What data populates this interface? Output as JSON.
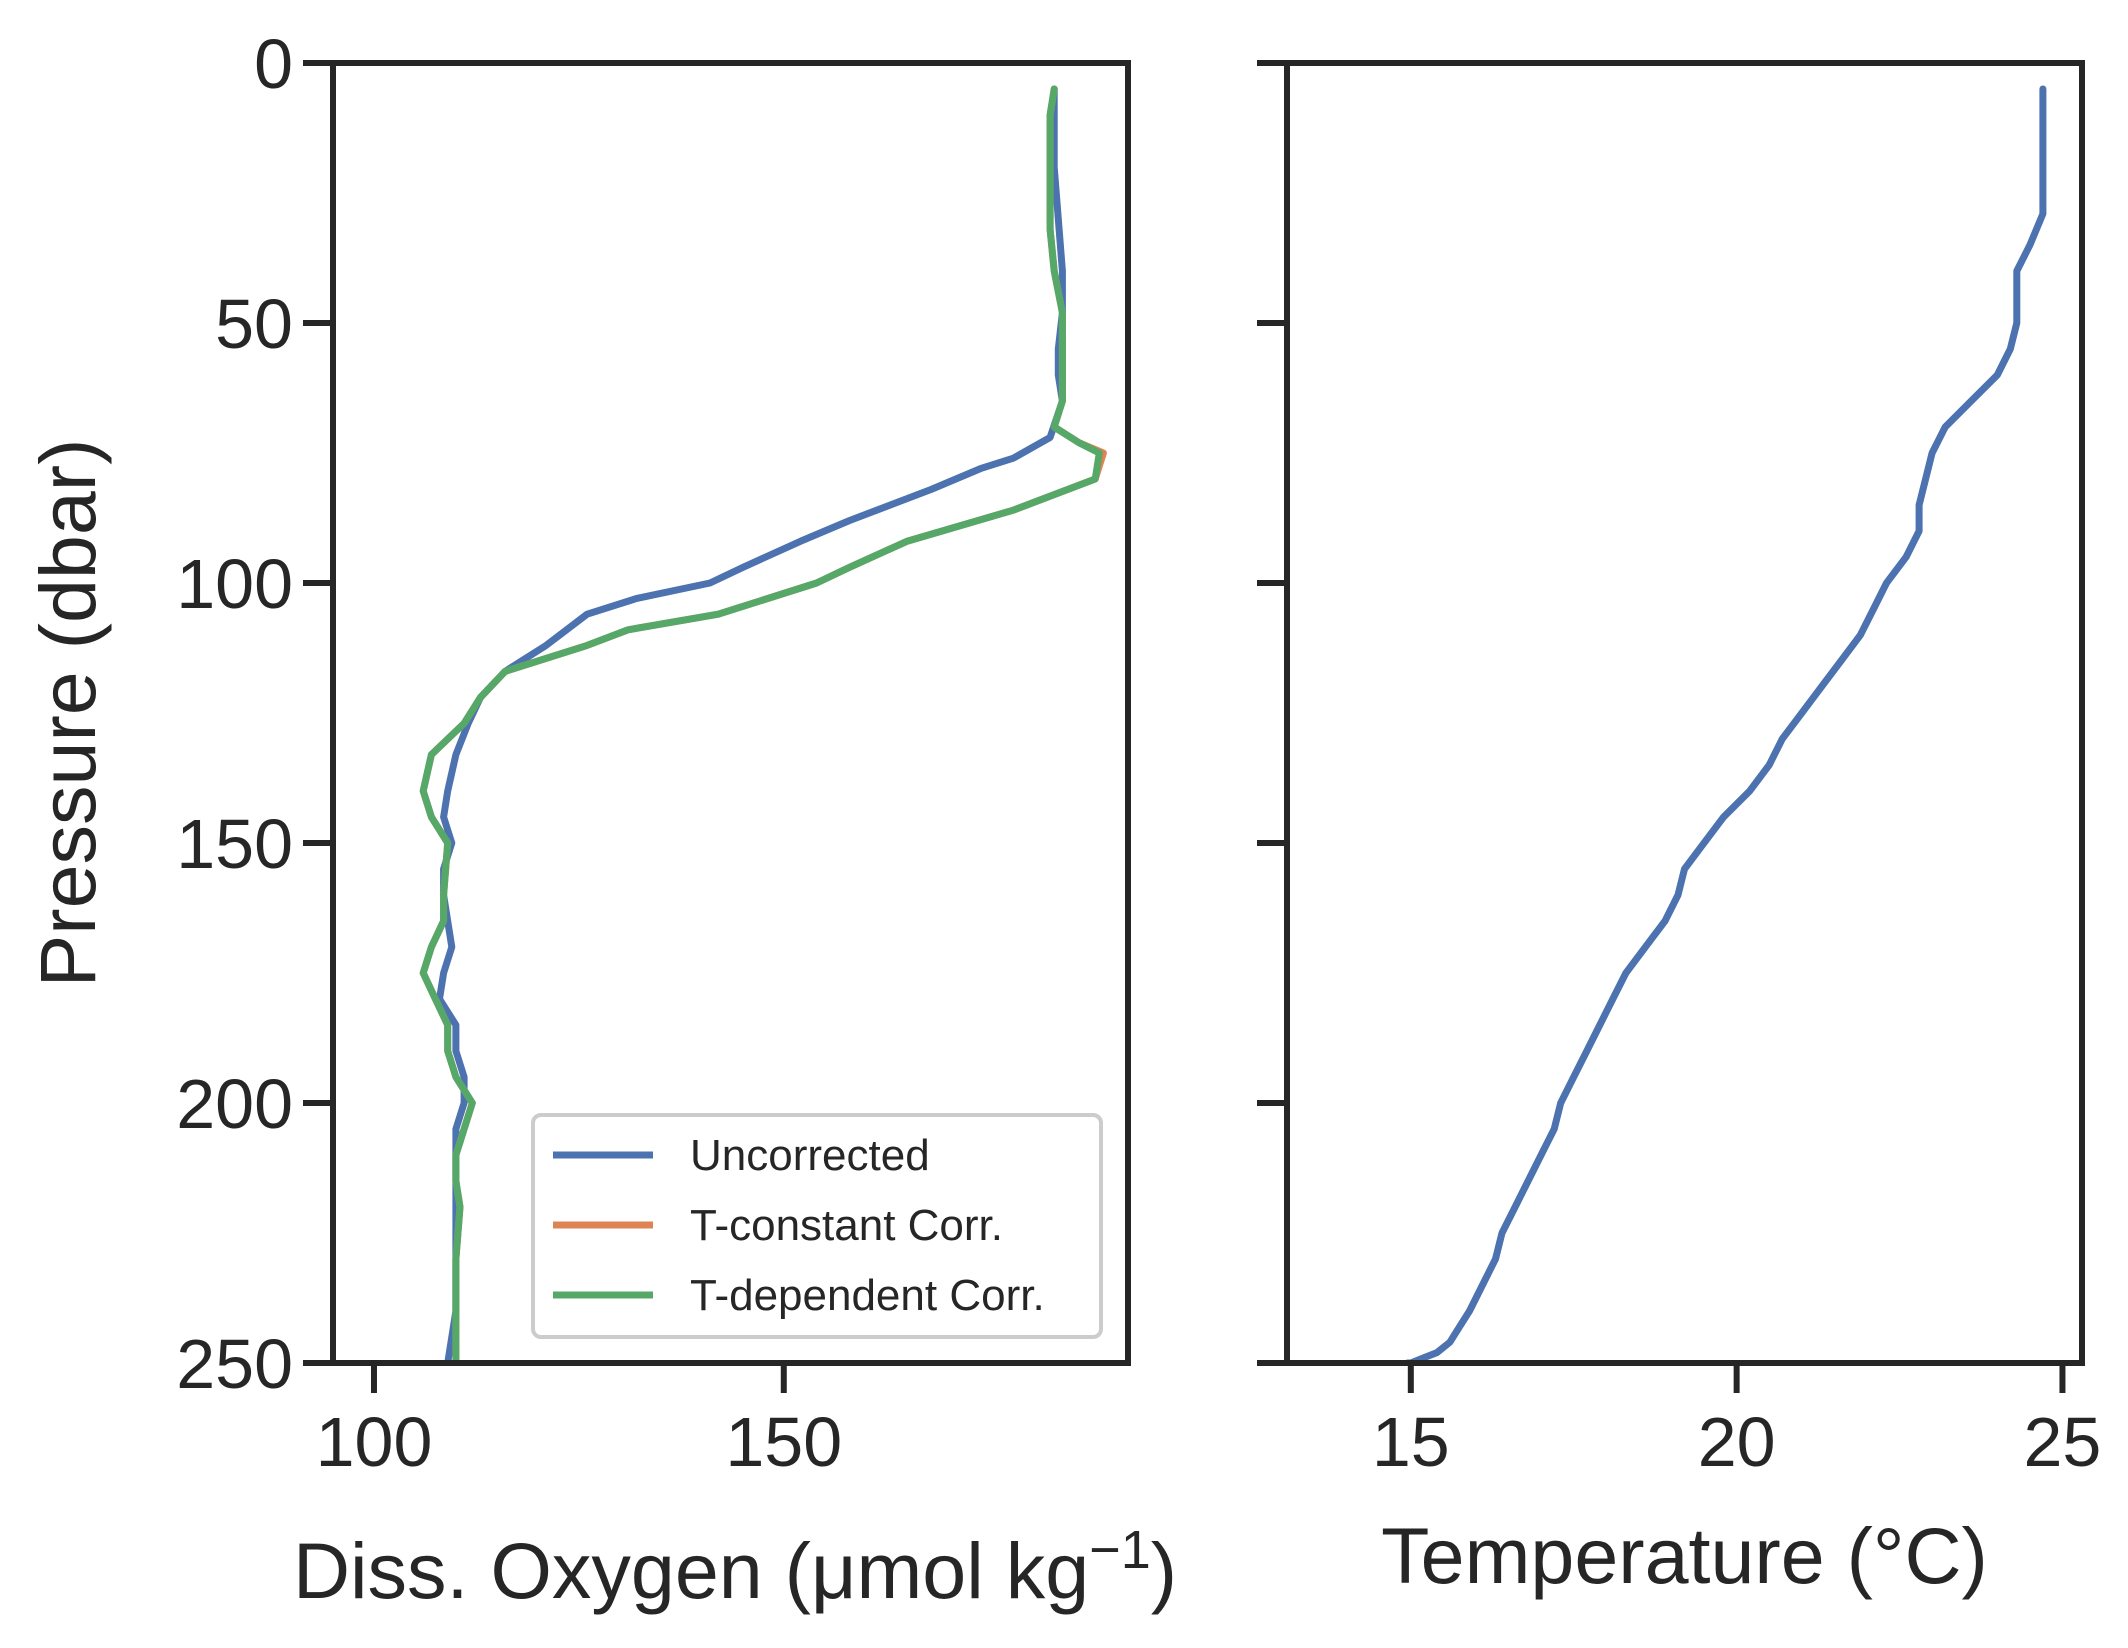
{
  "chart_data": [
    {
      "type": "line",
      "panel": "left",
      "xlabel": "Diss. Oxygen (μmol kg",
      "xlabel_superscript": "−1",
      "xlabel_suffix": ")",
      "ylabel": "Pressure (dbar)",
      "xlim": [
        95,
        192
      ],
      "ylim": [
        250,
        0
      ],
      "y_inverted": true,
      "xticks": [
        100,
        150
      ],
      "yticks": [
        0,
        50,
        100,
        150,
        200,
        250
      ],
      "legend_placement": "lower-right",
      "series": [
        {
          "name": "Uncorrected",
          "color": "#4c72b0",
          "x": [
            183.0,
            183.0,
            183.0,
            183.5,
            184.0,
            184.0,
            183.5,
            183.5,
            184.0,
            182.5,
            178.0,
            174.0,
            168.0,
            163.0,
            158.0,
            152.0,
            145.0,
            141.0,
            132.0,
            126.0,
            121.0,
            116.0,
            113.0,
            111.5,
            110.0,
            109.0,
            108.5,
            109.5,
            108.5,
            108.5,
            109.0,
            109.5,
            108.5,
            108.0,
            110.0,
            110.0,
            111.0,
            111.0,
            110.0,
            110.0,
            110.0,
            110.0,
            110.0,
            109.0
          ],
          "y": [
            5,
            10,
            20,
            30,
            40,
            48,
            55,
            60,
            65,
            72,
            76,
            78,
            82,
            85,
            88,
            92,
            97,
            100,
            103,
            106,
            112,
            117,
            122,
            127,
            133,
            140,
            145,
            150,
            155,
            160,
            165,
            170,
            175,
            180,
            185,
            190,
            195,
            200,
            205,
            210,
            220,
            230,
            240,
            250
          ]
        },
        {
          "name": "T-constant Corr.",
          "color": "#dd8452",
          "x": [
            183.0,
            182.5,
            182.5,
            182.5,
            182.5,
            183.0,
            184.0,
            184.0,
            184.0,
            184.0,
            183.0,
            186.0,
            189.0,
            188.0,
            178.0,
            165.0,
            158.0,
            154.0,
            142.0,
            131.0,
            126.0,
            116.0,
            113.0,
            111.0,
            107.0,
            106.0,
            107.0,
            109.0,
            108.5,
            108.5,
            107.0,
            106.0,
            107.5,
            109.0,
            109.0,
            110.0,
            112.0,
            111.0,
            110.0,
            110.0,
            110.5,
            110.0,
            110.0,
            110.0
          ],
          "y": [
            5,
            10,
            20,
            30,
            32,
            40,
            48,
            55,
            60,
            65,
            70,
            73,
            75,
            80,
            86,
            92,
            97,
            100,
            106,
            109,
            112,
            117,
            122,
            127,
            133,
            140,
            145,
            150,
            160,
            165,
            170,
            175,
            180,
            185,
            190,
            195,
            200,
            205,
            210,
            215,
            220,
            230,
            240,
            250
          ]
        },
        {
          "name": "T-dependent Corr.",
          "color": "#55a868",
          "x": [
            183.0,
            182.5,
            182.5,
            182.5,
            182.5,
            183.0,
            184.0,
            184.0,
            184.0,
            184.0,
            183.0,
            186.0,
            188.5,
            188.0,
            178.0,
            165.0,
            158.0,
            154.0,
            142.0,
            131.0,
            126.0,
            116.0,
            113.0,
            111.0,
            107.0,
            106.0,
            107.0,
            109.0,
            108.5,
            108.5,
            107.0,
            106.0,
            107.5,
            109.0,
            109.0,
            110.0,
            112.0,
            111.0,
            110.0,
            110.0,
            110.5,
            110.0,
            110.0,
            110.0
          ],
          "y": [
            5,
            10,
            20,
            30,
            32,
            40,
            48,
            55,
            60,
            65,
            70,
            73,
            75,
            80,
            86,
            92,
            97,
            100,
            106,
            109,
            112,
            117,
            122,
            127,
            133,
            140,
            145,
            150,
            160,
            165,
            170,
            175,
            180,
            185,
            190,
            195,
            200,
            205,
            210,
            215,
            220,
            230,
            240,
            250
          ]
        }
      ]
    },
    {
      "type": "line",
      "panel": "right",
      "xlabel": "Temperature (°C)",
      "ylabel": "",
      "xlim": [
        13.1,
        25.3
      ],
      "ylim": [
        250,
        0
      ],
      "y_inverted": true,
      "xticks": [
        15,
        20,
        25
      ],
      "yticks": [
        0,
        50,
        100,
        150,
        200,
        250
      ],
      "show_ytick_labels": false,
      "series": [
        {
          "name": "",
          "color": "#4c72b0",
          "x": [
            24.7,
            24.7,
            24.7,
            24.5,
            24.3,
            24.3,
            24.2,
            24.0,
            23.6,
            23.2,
            23.0,
            22.9,
            22.8,
            22.8,
            22.6,
            22.3,
            22.1,
            21.9,
            21.6,
            21.3,
            21.0,
            20.7,
            20.5,
            20.2,
            19.8,
            19.5,
            19.2,
            19.1,
            18.9,
            18.6,
            18.3,
            18.1,
            17.9,
            17.7,
            17.5,
            17.3,
            17.2,
            17.0,
            16.8,
            16.6,
            16.4,
            16.3,
            16.1,
            15.9,
            15.7,
            15.6,
            15.4,
            15.2,
            15.0,
            14.95
          ],
          "y": [
            5,
            15,
            29,
            35,
            40,
            50,
            55,
            60,
            65,
            70,
            75,
            80,
            85,
            90,
            95,
            100,
            105,
            110,
            115,
            120,
            125,
            130,
            135,
            140,
            145,
            150,
            155,
            160,
            165,
            170,
            175,
            180,
            185,
            190,
            195,
            200,
            205,
            210,
            215,
            220,
            225,
            230,
            235,
            240,
            244,
            246,
            248,
            249,
            250,
            250
          ]
        }
      ]
    }
  ]
}
